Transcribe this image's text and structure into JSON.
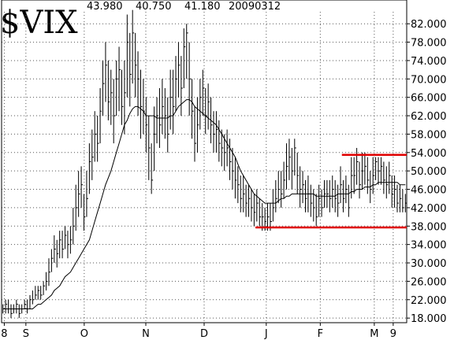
{
  "chart_data": {
    "type": "ohlc",
    "title": "$VIX",
    "header_values": [
      "43.980",
      "40.750",
      "41.180",
      "20090312"
    ],
    "xlim": [
      0,
      150
    ],
    "xticks": [
      {
        "value": 1,
        "label": "8"
      },
      {
        "value": 9,
        "label": "S"
      },
      {
        "value": 30.6,
        "label": "O"
      },
      {
        "value": 53.4,
        "label": "N"
      },
      {
        "value": 75,
        "label": "D"
      },
      {
        "value": 98,
        "label": "J"
      },
      {
        "value": 118,
        "label": "F"
      },
      {
        "value": 138,
        "label": "M"
      },
      {
        "value": 145,
        "label": "9"
      }
    ],
    "ylim": [
      17,
      84.6
    ],
    "yticks": [
      {
        "value": 18,
        "label": "18.000"
      },
      {
        "value": 22,
        "label": "22.000"
      },
      {
        "value": 26,
        "label": "26.000"
      },
      {
        "value": 30,
        "label": "30.000"
      },
      {
        "value": 34,
        "label": "34.000"
      },
      {
        "value": 38,
        "label": "38.000"
      },
      {
        "value": 42,
        "label": "42.000"
      },
      {
        "value": 46,
        "label": "46.000"
      },
      {
        "value": 50,
        "label": "50.000"
      },
      {
        "value": 54,
        "label": "54.000"
      },
      {
        "value": 58,
        "label": "58.000"
      },
      {
        "value": 62,
        "label": "62.000"
      },
      {
        "value": 66,
        "label": "66.000"
      },
      {
        "value": 70,
        "label": "70.000"
      },
      {
        "value": 74,
        "label": "74.000"
      },
      {
        "value": 78,
        "label": "78.000"
      },
      {
        "value": 82,
        "label": "82.000"
      }
    ],
    "grid": true,
    "color": "#000000",
    "high": [
      21,
      22,
      22,
      21,
      21,
      22,
      21,
      21,
      22,
      22,
      23,
      24,
      25,
      25,
      25,
      26,
      28,
      31,
      33,
      36,
      35,
      37,
      37,
      38,
      37,
      38,
      42,
      47,
      50,
      51,
      45,
      50,
      56,
      59,
      63,
      62,
      68,
      74,
      78,
      74,
      72,
      70,
      74,
      77,
      72,
      74,
      84,
      80,
      85,
      80,
      76,
      72,
      70,
      66,
      62,
      56,
      64,
      66,
      68,
      70,
      68,
      66,
      72,
      72,
      75,
      78,
      75,
      81,
      82,
      78,
      70,
      64,
      66,
      70,
      72,
      68,
      69,
      66,
      63,
      63,
      61,
      59,
      58,
      59,
      57,
      55,
      53,
      51,
      49,
      49,
      47,
      47,
      46,
      45,
      46,
      44,
      43,
      42,
      43,
      43,
      46,
      48,
      50,
      50,
      52,
      56,
      57,
      55,
      57,
      54,
      51,
      50,
      48,
      49,
      47,
      46,
      45,
      47,
      46,
      48,
      48,
      48,
      49,
      48,
      47,
      51,
      48,
      49,
      47,
      53,
      53,
      55,
      52,
      54,
      54,
      53,
      50,
      53,
      53,
      53,
      53,
      52,
      51,
      52,
      49,
      49,
      47,
      47,
      46,
      45
    ],
    "low": [
      19,
      19,
      19,
      18,
      19,
      19,
      18,
      19,
      20,
      19,
      20,
      21,
      22,
      22,
      22,
      23,
      24,
      25,
      28,
      30,
      29,
      31,
      31,
      33,
      31,
      32,
      34,
      37,
      40,
      42,
      37,
      40,
      45,
      48,
      52,
      52,
      56,
      62,
      65,
      61,
      60,
      56,
      62,
      63,
      60,
      58,
      66,
      64,
      69,
      66,
      62,
      57,
      58,
      54,
      48,
      45,
      50,
      56,
      55,
      58,
      57,
      54,
      59,
      58,
      63,
      66,
      62,
      68,
      70,
      62,
      57,
      52,
      54,
      59,
      62,
      58,
      59,
      56,
      54,
      54,
      52,
      51,
      50,
      51,
      48,
      46,
      44,
      43,
      41,
      41,
      40,
      40,
      39,
      38,
      39,
      38,
      37,
      37,
      37,
      37,
      39,
      41,
      43,
      42,
      44,
      46,
      48,
      46,
      49,
      45,
      42,
      43,
      41,
      41,
      40,
      39,
      38,
      40,
      40,
      42,
      42,
      41,
      42,
      41,
      40,
      43,
      41,
      43,
      40,
      44,
      45,
      47,
      44,
      46,
      47,
      45,
      43,
      45,
      48,
      47,
      47,
      45,
      44,
      45,
      42,
      42,
      41,
      41,
      41,
      41
    ],
    "close": [
      20,
      21,
      20,
      19,
      20,
      21,
      19,
      20,
      21,
      20,
      22,
      22,
      23,
      24,
      23,
      25,
      26,
      28,
      31,
      33,
      32,
      35,
      33,
      36,
      34,
      35,
      38,
      42,
      45,
      47,
      40,
      44,
      52,
      53,
      58,
      56,
      63,
      69,
      73,
      65,
      67,
      62,
      70,
      72,
      64,
      67,
      78,
      71,
      80,
      73,
      70,
      64,
      63,
      60,
      55,
      48,
      58,
      62,
      60,
      64,
      62,
      58,
      66,
      64,
      70,
      73,
      68,
      77,
      80,
      70,
      63,
      56,
      60,
      66,
      68,
      62,
      65,
      60,
      58,
      59,
      56,
      55,
      54,
      55,
      52,
      50,
      48,
      47,
      44,
      45,
      43,
      44,
      42,
      41,
      43,
      40,
      40,
      39,
      40,
      39,
      42,
      44,
      46,
      45,
      48,
      51,
      53,
      50,
      55,
      49,
      46,
      47,
      44,
      45,
      43,
      42,
      40,
      44,
      42,
      45,
      45,
      44,
      46,
      44,
      43,
      47,
      44,
      46,
      42,
      49,
      49,
      52,
      47,
      50,
      51,
      48,
      46,
      49,
      52,
      50,
      51,
      48,
      47,
      49,
      45,
      46,
      43,
      44,
      42,
      43
    ],
    "ma": [
      20,
      20,
      20,
      20,
      20,
      20,
      20,
      20,
      20,
      20,
      20,
      20,
      20.5,
      21,
      21,
      21.5,
      22,
      22.5,
      23,
      24,
      24.5,
      25,
      26,
      27,
      27.5,
      28,
      29,
      30,
      31,
      32,
      33,
      34,
      35,
      37,
      39,
      41,
      43,
      45,
      47,
      48.5,
      50,
      52,
      54,
      56,
      58,
      60,
      61,
      62.5,
      63.5,
      64,
      64,
      63.5,
      63,
      62,
      62,
      62,
      62,
      61.5,
      61.5,
      61.5,
      61.5,
      61.5,
      62,
      62,
      63,
      64,
      64.5,
      65,
      65.5,
      65.5,
      65,
      64,
      63.5,
      63,
      62.5,
      62,
      61.5,
      61,
      60.5,
      60,
      59,
      58,
      57,
      56,
      55,
      54,
      53,
      51.5,
      50,
      49,
      48,
      47,
      46,
      45,
      44.5,
      44,
      43.5,
      43,
      43,
      43,
      43,
      43,
      43.5,
      44,
      44,
      44.5,
      44.5,
      45,
      45,
      45,
      45,
      45,
      45,
      45,
      45,
      45,
      44.5,
      44.5,
      44.5,
      44.5,
      44.5,
      44.5,
      44.5,
      44.5,
      45,
      45,
      45,
      45,
      45,
      45.5,
      45.5,
      46,
      46,
      46,
      46.5,
      46.5,
      46.5,
      47,
      47,
      47.5,
      47.5,
      47.5,
      47.5,
      47.5,
      47.5,
      47.5,
      47.5,
      47,
      47,
      47
    ],
    "hlines": [
      {
        "value": 53.5,
        "from": 126,
        "to": 150,
        "color": "#e00000"
      },
      {
        "value": 37.7,
        "from": 94,
        "to": 150,
        "color": "#e00000"
      }
    ]
  }
}
